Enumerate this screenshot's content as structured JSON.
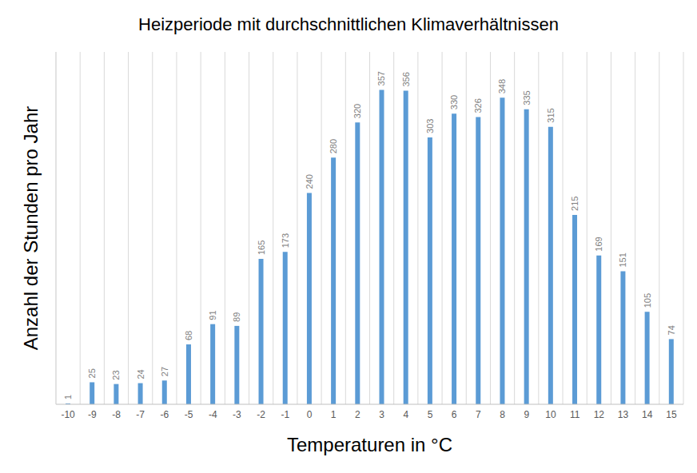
{
  "chart_data": {
    "type": "bar",
    "title": "Heizperiode mit durchschnittlichen Klimaverhältnissen",
    "x_label": "Temperaturen in °C",
    "y_label": "Anzahl der Stunden pro Jahr",
    "categories": [
      "-10",
      "-9",
      "-8",
      "-7",
      "-6",
      "-5",
      "-4",
      "-3",
      "-2",
      "-1",
      "0",
      "1",
      "2",
      "3",
      "4",
      "5",
      "6",
      "7",
      "8",
      "9",
      "10",
      "11",
      "12",
      "13",
      "14",
      "15"
    ],
    "values": [
      1,
      25,
      23,
      24,
      27,
      68,
      91,
      89,
      165,
      173,
      240,
      280,
      320,
      357,
      356,
      303,
      330,
      326,
      348,
      335,
      315,
      215,
      169,
      151,
      105,
      74
    ],
    "color": "#5b9bd5",
    "ylim": [
      0,
      400
    ],
    "yticks": [],
    "grid": true,
    "data_labels": true,
    "tick_labels": "x"
  }
}
